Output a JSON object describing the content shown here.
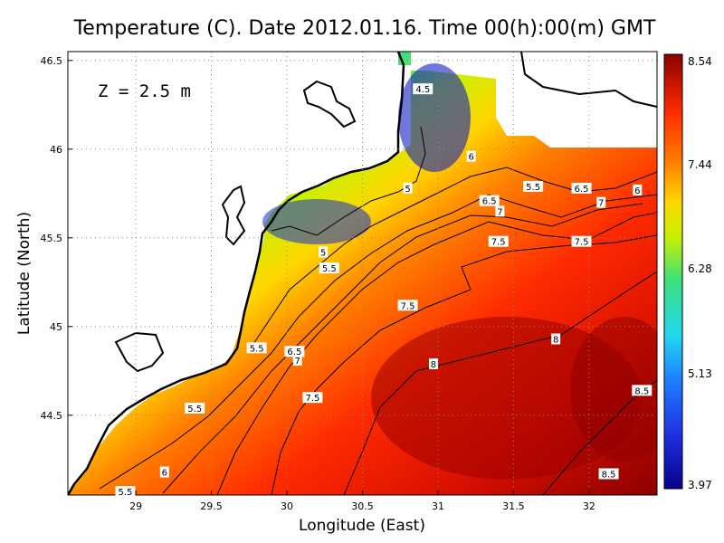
{
  "chart_data": {
    "type": "heatmap",
    "title": "Temperature (C). Date 2012.01.16. Time 00(h):00(m) GMT",
    "xlabel": "Longitude (East)",
    "ylabel": "Latitude (North)",
    "annotation": "Z = 2.5 m",
    "xlim": [
      28.55,
      32.45
    ],
    "ylim": [
      44.05,
      46.55
    ],
    "x_ticks": [
      "29",
      "29.5",
      "30",
      "30.5",
      "31",
      "31.5",
      "32"
    ],
    "y_ticks": [
      "44.5",
      "45",
      "45.5",
      "46",
      "46.5"
    ],
    "grid": true,
    "colorbar": {
      "ticks": [
        "8.54",
        "7.44",
        "6.28",
        "5.13",
        "3.97"
      ],
      "min": 3.97,
      "max": 8.54,
      "colors": [
        "#8b0000",
        "#ff2a00",
        "#ff7f00",
        "#ffd700",
        "#c8f000",
        "#3ce07c",
        "#22d6f2",
        "#1e7fff",
        "#1f2ee0",
        "#08008e"
      ]
    },
    "land_color": "#ffffff",
    "coastline_color": "#000000",
    "contour_labels": [
      {
        "text": "4.5",
        "lon": 30.9,
        "lat": 46.34
      },
      {
        "text": "5",
        "lon": 30.8,
        "lat": 45.78
      },
      {
        "text": "6",
        "lon": 31.22,
        "lat": 45.96
      },
      {
        "text": "5.5",
        "lon": 31.63,
        "lat": 45.79
      },
      {
        "text": "6.5",
        "lon": 31.95,
        "lat": 45.78
      },
      {
        "text": "6",
        "lon": 32.32,
        "lat": 45.77
      },
      {
        "text": "6.5",
        "lon": 31.34,
        "lat": 45.71
      },
      {
        "text": "7",
        "lon": 31.41,
        "lat": 45.65
      },
      {
        "text": "7",
        "lon": 32.08,
        "lat": 45.7
      },
      {
        "text": "7.5",
        "lon": 31.4,
        "lat": 45.48
      },
      {
        "text": "7.5",
        "lon": 31.95,
        "lat": 45.48
      },
      {
        "text": "5",
        "lon": 30.24,
        "lat": 45.42
      },
      {
        "text": "5.5",
        "lon": 30.28,
        "lat": 45.33
      },
      {
        "text": "7.5",
        "lon": 30.8,
        "lat": 45.12
      },
      {
        "text": "8",
        "lon": 31.78,
        "lat": 44.93
      },
      {
        "text": "8",
        "lon": 30.97,
        "lat": 44.79
      },
      {
        "text": "5.5",
        "lon": 29.8,
        "lat": 44.88
      },
      {
        "text": "6.5",
        "lon": 30.05,
        "lat": 44.86
      },
      {
        "text": "7",
        "lon": 30.07,
        "lat": 44.81
      },
      {
        "text": "7.5",
        "lon": 30.17,
        "lat": 44.6
      },
      {
        "text": "5.5",
        "lon": 29.39,
        "lat": 44.54
      },
      {
        "text": "8.5",
        "lon": 32.35,
        "lat": 44.64
      },
      {
        "text": "8.5",
        "lon": 32.13,
        "lat": 44.17
      },
      {
        "text": "6",
        "lon": 29.19,
        "lat": 44.18
      },
      {
        "text": "5.5",
        "lon": 28.93,
        "lat": 44.07
      }
    ]
  }
}
